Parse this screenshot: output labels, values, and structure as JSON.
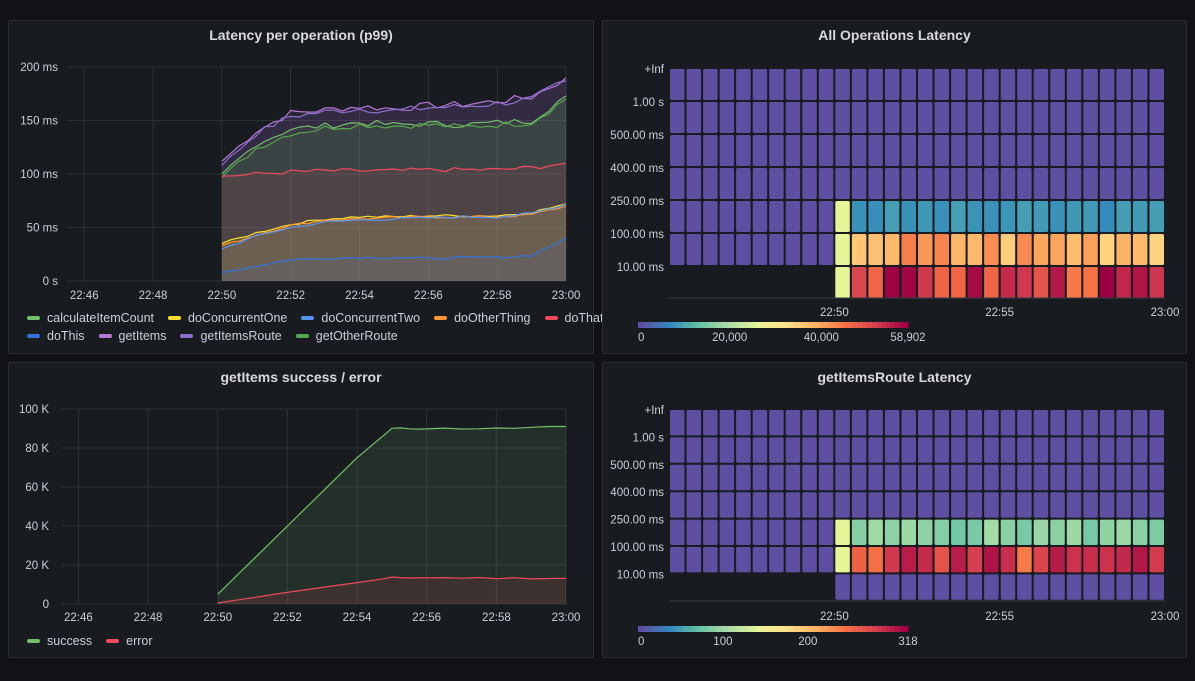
{
  "panels": {
    "latency": {
      "title": "Latency per operation (p99)",
      "y_ticks": [
        "200 ms",
        "150 ms",
        "100 ms",
        "50 ms",
        "0 s"
      ],
      "x_ticks": [
        "22:46",
        "22:48",
        "22:50",
        "22:52",
        "22:54",
        "22:56",
        "22:58",
        "23:00"
      ],
      "legend_rows": [
        [
          {
            "label": "calculateItemCount",
            "color": "#73bf69"
          },
          {
            "label": "doConcurrentOne",
            "color": "#fade2a"
          },
          {
            "label": "doConcurrentTwo",
            "color": "#5794f2"
          },
          {
            "label": "doOtherThing",
            "color": "#ff9830"
          },
          {
            "label": "doThat",
            "color": "#f2495c"
          }
        ],
        [
          {
            "label": "doThis",
            "color": "#3274d9"
          },
          {
            "label": "getItems",
            "color": "#b877d9"
          },
          {
            "label": "getItemsRoute",
            "color": "#8f6fcf"
          },
          {
            "label": "getOtherRoute",
            "color": "#56a64b"
          }
        ]
      ]
    },
    "all_ops": {
      "title": "All Operations Latency",
      "y_buckets": [
        "+Inf",
        "1.00 s",
        "500.00 ms",
        "400.00 ms",
        "250.00 ms",
        "100.00 ms",
        "10.00 ms"
      ],
      "x_ticks": [
        "22:50",
        "22:55",
        "23:00"
      ],
      "scale_labels": [
        "0",
        "20,000",
        "40,000",
        "58,902"
      ]
    },
    "success_error": {
      "title": "getItems success / error",
      "y_ticks": [
        "100 K",
        "80 K",
        "60 K",
        "40 K",
        "20 K",
        "0"
      ],
      "x_ticks": [
        "22:46",
        "22:48",
        "22:50",
        "22:52",
        "22:54",
        "22:56",
        "22:58",
        "23:00"
      ],
      "legend": [
        {
          "label": "success",
          "color": "#73bf69"
        },
        {
          "label": "error",
          "color": "#f2495c"
        }
      ]
    },
    "items_route": {
      "title": "getItemsRoute Latency",
      "y_buckets": [
        "+Inf",
        "1.00 s",
        "500.00 ms",
        "400.00 ms",
        "250.00 ms",
        "100.00 ms",
        "10.00 ms"
      ],
      "x_ticks": [
        "22:50",
        "22:55",
        "23:00"
      ],
      "scale_labels": [
        "0",
        "100",
        "200",
        "318"
      ]
    }
  },
  "chart_data": [
    {
      "type": "line",
      "title": "Latency per operation (p99)",
      "ylabel": "ms",
      "ylim": [
        0,
        200
      ],
      "x": [
        "22:50",
        "22:51",
        "22:52",
        "22:53",
        "22:54",
        "22:55",
        "22:56",
        "22:57",
        "22:58",
        "22:59",
        "23:00"
      ],
      "series": [
        {
          "name": "getItems",
          "values": [
            112,
            140,
            157,
            160,
            163,
            161,
            164,
            165,
            168,
            172,
            190
          ]
        },
        {
          "name": "getItemsRoute",
          "values": [
            108,
            138,
            154,
            158,
            161,
            159,
            162,
            163,
            166,
            170,
            187
          ]
        },
        {
          "name": "calculateItemCount",
          "values": [
            100,
            128,
            142,
            145,
            148,
            146,
            147,
            146,
            148,
            150,
            173
          ]
        },
        {
          "name": "getOtherRoute",
          "values": [
            97,
            124,
            138,
            143,
            146,
            145,
            146,
            144,
            146,
            148,
            170
          ]
        },
        {
          "name": "doThat",
          "values": [
            98,
            100,
            102,
            103,
            103,
            103,
            104,
            104,
            104,
            106,
            110
          ]
        },
        {
          "name": "doConcurrentOne",
          "values": [
            35,
            45,
            53,
            58,
            60,
            60,
            61,
            61,
            61,
            64,
            72
          ]
        },
        {
          "name": "doOtherThing",
          "values": [
            33,
            43,
            52,
            57,
            58,
            59,
            60,
            60,
            60,
            62,
            70
          ]
        },
        {
          "name": "doConcurrentTwo",
          "values": [
            30,
            42,
            50,
            55,
            57,
            58,
            59,
            60,
            60,
            63,
            72
          ]
        },
        {
          "name": "doThis",
          "values": [
            8,
            14,
            20,
            21,
            22,
            22,
            21,
            22,
            22,
            24,
            40
          ]
        }
      ]
    },
    {
      "type": "heatmap",
      "title": "All Operations Latency",
      "x_range": [
        "22:45",
        "23:00"
      ],
      "y_buckets": [
        "10.00 ms",
        "100.00 ms",
        "250.00 ms",
        "400.00 ms",
        "500.00 ms",
        "1.00 s",
        "+Inf"
      ],
      "color_range": [
        0,
        58902
      ],
      "description_values": {
        "before_22:50": {
          "10.00 ms": 0,
          "100.00 ms": 0,
          "250.00 ms": 0,
          "400.00 ms": 0,
          "500.00 ms": 0,
          "1.00 s": 0,
          "+Inf": 0
        },
        "after_22:50": {
          "10.00 ms": 52000,
          "100.00 ms": 40000,
          "250.00 ms": 8000,
          "400.00 ms": 0,
          "500.00 ms": 0,
          "1.00 s": 0,
          "+Inf": 0
        }
      }
    },
    {
      "type": "area",
      "title": "getItems success / error",
      "ylim": [
        0,
        100000
      ],
      "x": [
        "22:50",
        "22:52",
        "22:54",
        "22:55",
        "22:56",
        "22:58",
        "23:00"
      ],
      "series": [
        {
          "name": "success",
          "values": [
            5000,
            40000,
            75000,
            90000,
            90000,
            90000,
            91000
          ]
        },
        {
          "name": "error",
          "values": [
            500,
            6000,
            11000,
            13500,
            13500,
            13300,
            13200
          ]
        }
      ]
    },
    {
      "type": "heatmap",
      "title": "getItemsRoute Latency",
      "x_range": [
        "22:45",
        "23:00"
      ],
      "y_buckets": [
        "10.00 ms",
        "100.00 ms",
        "250.00 ms",
        "400.00 ms",
        "500.00 ms",
        "1.00 s",
        "+Inf"
      ],
      "color_range": [
        0,
        318
      ],
      "description_values": {
        "before_22:50": {
          "10.00 ms": 0,
          "100.00 ms": 0,
          "250.00 ms": 0,
          "400.00 ms": 0,
          "500.00 ms": 0,
          "1.00 s": 0,
          "+Inf": 0
        },
        "after_22:50": {
          "10.00 ms": 0,
          "100.00 ms": 270,
          "250.00 ms": 90,
          "400.00 ms": 0,
          "500.00 ms": 0,
          "1.00 s": 0,
          "+Inf": 0
        }
      }
    }
  ]
}
